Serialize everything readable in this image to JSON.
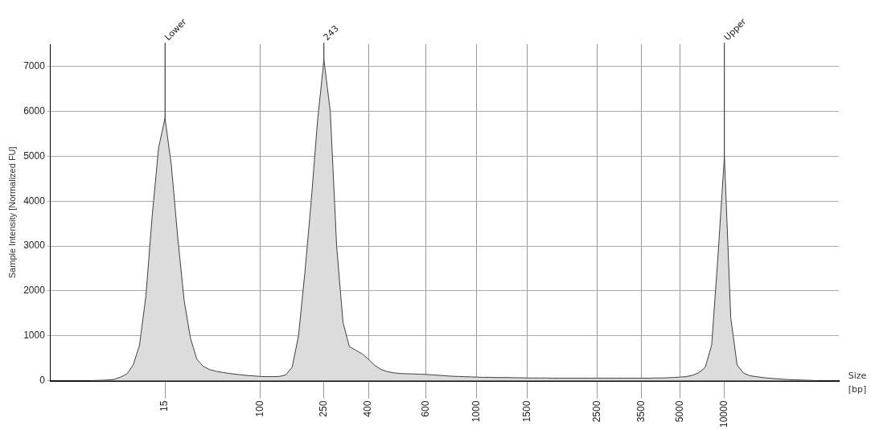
{
  "chart_data": {
    "type": "area",
    "ylabel": "Sample Intensity [Normalized FU]",
    "xlabel": "Size [bp]",
    "categories": [
      null,
      null,
      null,
      null,
      null,
      null,
      null,
      null,
      null,
      null,
      null,
      null,
      null,
      null,
      null,
      null,
      null,
      null,
      "15",
      null,
      null,
      null,
      null,
      null,
      null,
      null,
      null,
      null,
      null,
      null,
      null,
      null,
      null,
      "100",
      null,
      null,
      null,
      null,
      null,
      null,
      null,
      null,
      null,
      "250",
      null,
      null,
      null,
      null,
      null,
      null,
      "400",
      null,
      null,
      null,
      null,
      null,
      null,
      null,
      null,
      "600",
      null,
      null,
      null,
      null,
      null,
      null,
      null,
      "1000",
      null,
      null,
      null,
      null,
      null,
      null,
      null,
      "1500",
      null,
      null,
      null,
      null,
      null,
      null,
      null,
      null,
      null,
      null,
      "2500",
      null,
      null,
      null,
      null,
      null,
      null,
      "3500",
      null,
      null,
      null,
      null,
      null,
      "5000",
      null,
      null,
      null,
      null,
      null,
      null,
      "10000",
      null,
      null,
      null,
      null,
      null,
      null,
      null,
      null,
      null,
      null,
      null,
      null,
      null,
      null,
      null,
      null,
      null,
      null
    ],
    "series": [
      {
        "color": "#404040",
        "values": [
          0,
          0,
          0,
          0,
          0,
          0,
          0,
          5,
          10,
          15,
          30,
          80,
          150,
          350,
          800,
          1900,
          3700,
          5200,
          5850,
          4800,
          3200,
          1800,
          950,
          480,
          320,
          250,
          210,
          185,
          165,
          145,
          130,
          115,
          105,
          95,
          90,
          90,
          95,
          130,
          300,
          1000,
          2400,
          4000,
          5800,
          7150,
          6000,
          3000,
          1300,
          760,
          680,
          600,
          480,
          340,
          250,
          200,
          175,
          160,
          155,
          150,
          145,
          140,
          130,
          120,
          110,
          100,
          95,
          90,
          85,
          80,
          75,
          75,
          70,
          70,
          70,
          65,
          65,
          60,
          60,
          60,
          60,
          55,
          55,
          55,
          55,
          55,
          55,
          55,
          55,
          55,
          55,
          55,
          55,
          55,
          55,
          55,
          55,
          60,
          60,
          65,
          70,
          80,
          90,
          120,
          180,
          300,
          800,
          2800,
          5000,
          1400,
          350,
          170,
          110,
          90,
          70,
          55,
          45,
          35,
          25,
          20,
          15,
          10,
          5,
          0,
          0,
          0,
          0
        ]
      }
    ],
    "ylim": [
      0,
      7500
    ],
    "yticks": [
      0,
      1000,
      2000,
      3000,
      4000,
      5000,
      6000,
      7000
    ],
    "grid": true,
    "legend": false,
    "annotations": [
      {
        "text": "Lower",
        "x": "15",
        "y": 5850
      },
      {
        "text": "243",
        "x": "250",
        "y": 7150
      },
      {
        "text": "Upper",
        "x": "10000",
        "y": 5000
      }
    ]
  }
}
